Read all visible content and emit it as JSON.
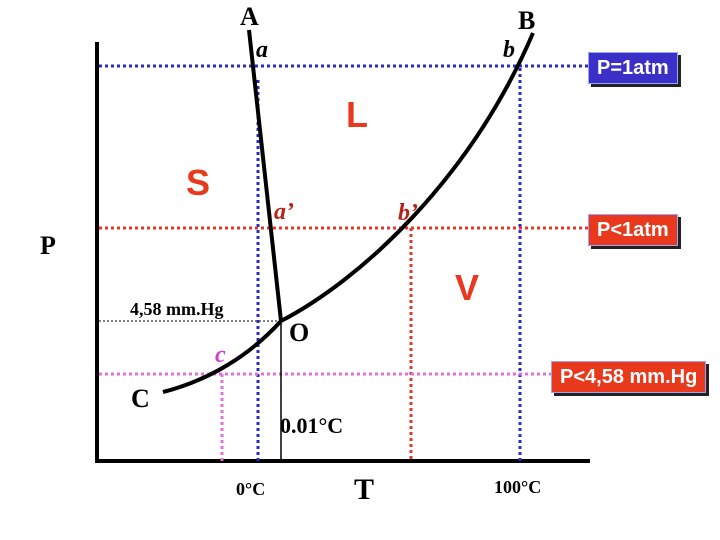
{
  "diagram": {
    "axis_labels": {
      "y": "P",
      "x": "T"
    },
    "curve_labels": {
      "melting": "A",
      "vaporization": "B",
      "sublimation": "C"
    },
    "phase_labels": {
      "solid": "S",
      "liquid": "L",
      "vapor": "V"
    },
    "point_labels": {
      "a": "a",
      "b": "b",
      "a_prime": "a’",
      "b_prime": "b’",
      "c": "c",
      "triple": "O"
    },
    "value_labels": {
      "triple_pressure": "4,58 mm.Hg",
      "triple_temperature": "0.01°C",
      "zero_celsius": "0°C",
      "hundred_celsius": "100°C"
    },
    "pressure_tags": {
      "p_1atm": "P=1atm",
      "p_less_1atm": "P<1atm",
      "p_less_458": "P<4,58 mm.Hg"
    },
    "colors": {
      "blue_dotted": "#2b2bbf",
      "red_dotted": "#e03a2a",
      "pink_dotted": "#e070e0",
      "tag_1atm_bg": "#3a2fc7",
      "tag_less_1atm_bg": "#e8391c",
      "tag_less_458_bg": "#e8391c",
      "phase_letter": "#e8391c",
      "point_c": "#d040d0"
    }
  }
}
